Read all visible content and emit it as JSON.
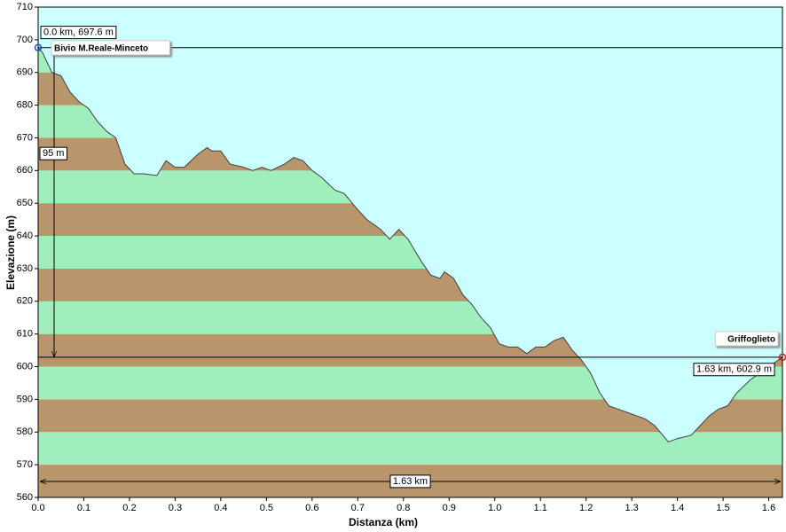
{
  "chart_data": {
    "type": "area",
    "x_label": "Distanza  (km)",
    "y_label": "Elevazione (m)",
    "x": [
      0.0,
      0.01,
      0.03,
      0.05,
      0.07,
      0.09,
      0.11,
      0.13,
      0.15,
      0.17,
      0.19,
      0.21,
      0.23,
      0.26,
      0.28,
      0.3,
      0.32,
      0.35,
      0.37,
      0.38,
      0.4,
      0.42,
      0.45,
      0.47,
      0.49,
      0.51,
      0.54,
      0.56,
      0.58,
      0.6,
      0.62,
      0.65,
      0.67,
      0.7,
      0.72,
      0.75,
      0.77,
      0.79,
      0.81,
      0.84,
      0.86,
      0.88,
      0.89,
      0.91,
      0.93,
      0.95,
      0.97,
      0.99,
      1.01,
      1.03,
      1.05,
      1.07,
      1.09,
      1.11,
      1.13,
      1.15,
      1.17,
      1.19,
      1.21,
      1.23,
      1.25,
      1.27,
      1.29,
      1.31,
      1.33,
      1.35,
      1.38,
      1.4,
      1.43,
      1.45,
      1.47,
      1.49,
      1.51,
      1.53,
      1.56,
      1.59,
      1.63
    ],
    "values": [
      697.6,
      696,
      690,
      689,
      684,
      681,
      679,
      675,
      672,
      670,
      662,
      659,
      659,
      658.5,
      663,
      661,
      661,
      665,
      667,
      666,
      666,
      662,
      661,
      660,
      661,
      660,
      662,
      664,
      663,
      660,
      658,
      654,
      653,
      648,
      645,
      642,
      639,
      642,
      639,
      632,
      628,
      627,
      629,
      627,
      622,
      619,
      615,
      612,
      607,
      606,
      606,
      604,
      606,
      606,
      608,
      609,
      605,
      602,
      598,
      592,
      588,
      587,
      586,
      585,
      584,
      582,
      577,
      578,
      579,
      582,
      585,
      587,
      588,
      592,
      596,
      599,
      602.9
    ],
    "line_color": "#404040",
    "sky_color": "#ccffff",
    "band_colors": [
      "#b8956b",
      "#a0eebb"
    ],
    "xlim": [
      0,
      1.63
    ],
    "ylim": [
      560,
      710
    ],
    "xticks": [
      {
        "value": 0,
        "label": "0.0"
      },
      0.1,
      0.2,
      0.3,
      0.4,
      0.5,
      0.6,
      0.7,
      0.8,
      0.9,
      {
        "value": 1,
        "label": "1.0"
      },
      1.1,
      1.2,
      1.3,
      1.4,
      1.5,
      1.6
    ],
    "yticks": [
      560,
      570,
      580,
      590,
      600,
      610,
      620,
      630,
      640,
      650,
      660,
      670,
      680,
      690,
      700,
      710
    ],
    "start": {
      "label": "Bivio M.Reale-Minceto",
      "readout": "0.0 km, 697.6 m",
      "color": "#2050c0"
    },
    "end": {
      "label": "Griffoglieto",
      "readout": "1.63 km, 602.9 m",
      "color": "#d02020"
    },
    "rise_label": "95 m",
    "distance_label": "1.63 km"
  }
}
